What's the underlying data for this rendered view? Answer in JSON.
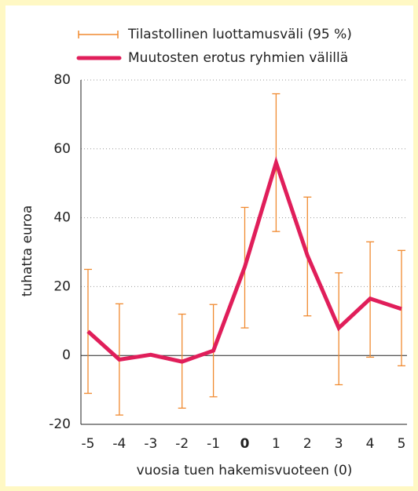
{
  "chart_data": {
    "type": "line",
    "x_label": "vuosia tuen hakemisvuoteen (0)",
    "y_label": "tuhatta euroa",
    "categories": [
      "-5",
      "-4",
      "-3",
      "-2",
      "-1",
      "0",
      "1",
      "2",
      "3",
      "4",
      "5"
    ],
    "series": [
      {
        "name": "Muutosten erotus ryhmien välillä",
        "color": "#e01e5a",
        "values": [
          7,
          -1.2,
          0.2,
          -1.8,
          1.4,
          25.7,
          56,
          29,
          8,
          16.5,
          13.5
        ]
      },
      {
        "name": "Tilastollinen luottamusväli (95 %)",
        "color": "#f08a30",
        "lower": [
          -11,
          -17.3,
          0.2,
          -15.3,
          -12,
          8,
          36,
          11.5,
          -8.5,
          -0.5,
          -3
        ],
        "upper": [
          25,
          15,
          0.2,
          12,
          14.8,
          43,
          76,
          46,
          24,
          33,
          30.5
        ]
      }
    ],
    "ylim": [
      -20,
      80
    ],
    "yticks": [
      -20,
      0,
      20,
      40,
      60,
      80
    ],
    "grid": true
  }
}
